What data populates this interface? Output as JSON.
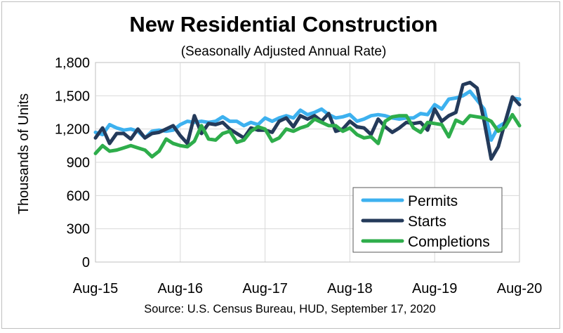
{
  "chart_data": {
    "type": "line",
    "title": "New Residential Construction",
    "subtitle": "(Seasonally Adjusted Annual Rate)",
    "ylabel": "Thousands of Units",
    "xlabel": "",
    "source": "Source:  U.S. Census Bureau, HUD, September 17, 2020",
    "ylim": [
      0,
      1800
    ],
    "yticks": [
      "0",
      "300",
      "600",
      "900",
      "1,200",
      "1,500",
      "1,800"
    ],
    "ytick_values": [
      0,
      300,
      600,
      900,
      1200,
      1500,
      1800
    ],
    "xticks": [
      "Aug-15",
      "Aug-16",
      "Aug-17",
      "Aug-18",
      "Aug-19",
      "Aug-20"
    ],
    "xtick_index": [
      0,
      12,
      24,
      36,
      48,
      60
    ],
    "grid": "vertical and horizontal",
    "legend_position": "bottom-right",
    "x": [
      "Aug-15",
      "Sep-15",
      "Oct-15",
      "Nov-15",
      "Dec-15",
      "Jan-16",
      "Feb-16",
      "Mar-16",
      "Apr-16",
      "May-16",
      "Jun-16",
      "Jul-16",
      "Aug-16",
      "Sep-16",
      "Oct-16",
      "Nov-16",
      "Dec-16",
      "Jan-17",
      "Feb-17",
      "Mar-17",
      "Apr-17",
      "May-17",
      "Jun-17",
      "Jul-17",
      "Aug-17",
      "Sep-17",
      "Oct-17",
      "Nov-17",
      "Dec-17",
      "Jan-18",
      "Feb-18",
      "Mar-18",
      "Apr-18",
      "May-18",
      "Jun-18",
      "Jul-18",
      "Aug-18",
      "Sep-18",
      "Oct-18",
      "Nov-18",
      "Dec-18",
      "Jan-19",
      "Feb-19",
      "Mar-19",
      "Apr-19",
      "May-19",
      "Jun-19",
      "Jul-19",
      "Aug-19",
      "Sep-19",
      "Oct-19",
      "Nov-19",
      "Dec-19",
      "Jan-20",
      "Feb-20",
      "Mar-20",
      "Apr-20",
      "May-20",
      "Jun-20",
      "Jul-20",
      "Aug-20"
    ],
    "series": [
      {
        "name": "Permits",
        "color": "#3DB1EF",
        "values": [
          1170,
          1150,
          1240,
          1210,
          1190,
          1200,
          1180,
          1120,
          1180,
          1190,
          1180,
          1190,
          1240,
          1270,
          1260,
          1270,
          1260,
          1270,
          1310,
          1270,
          1270,
          1230,
          1260,
          1240,
          1300,
          1270,
          1300,
          1320,
          1300,
          1370,
          1330,
          1350,
          1380,
          1330,
          1300,
          1310,
          1330,
          1270,
          1290,
          1320,
          1330,
          1320,
          1300,
          1290,
          1300,
          1300,
          1340,
          1330,
          1420,
          1380,
          1470,
          1480,
          1500,
          1540,
          1460,
          1380,
          1100,
          1220,
          1260,
          1480,
          1470
        ]
      },
      {
        "name": "Starts",
        "color": "#243A5A",
        "values": [
          1120,
          1210,
          1070,
          1160,
          1160,
          1110,
          1200,
          1120,
          1160,
          1170,
          1200,
          1230,
          1140,
          1070,
          1320,
          1160,
          1250,
          1240,
          1260,
          1200,
          1160,
          1120,
          1210,
          1190,
          1190,
          1170,
          1270,
          1300,
          1220,
          1320,
          1290,
          1320,
          1270,
          1340,
          1180,
          1200,
          1270,
          1220,
          1210,
          1150,
          1290,
          1220,
          1170,
          1210,
          1260,
          1250,
          1260,
          1190,
          1380,
          1270,
          1320,
          1350,
          1600,
          1620,
          1570,
          1270,
          930,
          1040,
          1270,
          1490,
          1420
        ]
      },
      {
        "name": "Completions",
        "color": "#2EAD4B",
        "values": [
          980,
          1050,
          1000,
          1010,
          1030,
          1050,
          1030,
          1010,
          950,
          1000,
          1110,
          1070,
          1050,
          1040,
          1090,
          1230,
          1110,
          1100,
          1160,
          1180,
          1080,
          1100,
          1180,
          1220,
          1200,
          1090,
          1120,
          1200,
          1180,
          1210,
          1230,
          1290,
          1260,
          1230,
          1230,
          1180,
          1210,
          1150,
          1120,
          1130,
          1070,
          1270,
          1310,
          1320,
          1320,
          1210,
          1170,
          1260,
          1250,
          1240,
          1130,
          1280,
          1250,
          1320,
          1310,
          1300,
          1270,
          1180,
          1220,
          1330,
          1230
        ]
      }
    ]
  }
}
